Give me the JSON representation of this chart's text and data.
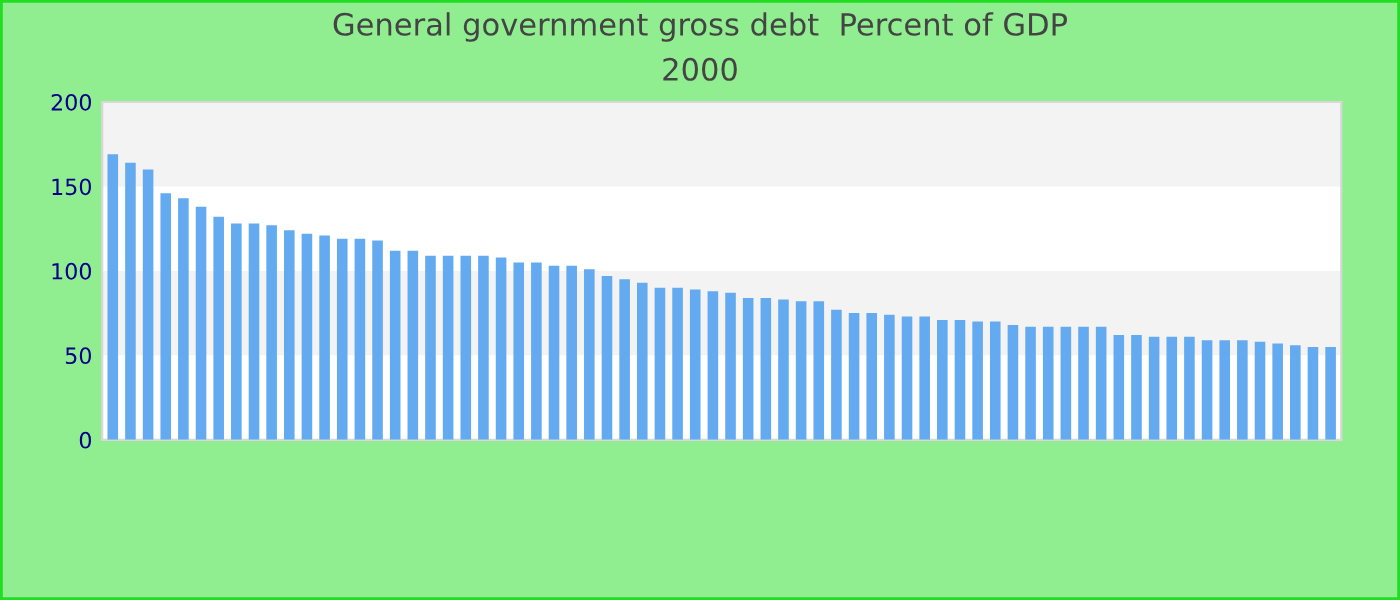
{
  "chart_data": {
    "type": "bar",
    "title": "General government gross debt  Percent of GDP",
    "subtitle": "2000",
    "categories": [
      null,
      null,
      null,
      null,
      null,
      null,
      null,
      null,
      null,
      null,
      null,
      null,
      null,
      null,
      null,
      null,
      null,
      null,
      null,
      null,
      null,
      null,
      null,
      null,
      null,
      null,
      null,
      null,
      null,
      null,
      null,
      null,
      null,
      null,
      null,
      null,
      null,
      null,
      null,
      null,
      null,
      null,
      null,
      null,
      null,
      null,
      null,
      null,
      null,
      null,
      null,
      null,
      null,
      null,
      null,
      null,
      null,
      null,
      null,
      null,
      null,
      null,
      null,
      null,
      null,
      null,
      null,
      null,
      null,
      null
    ],
    "values": [
      169,
      164,
      160,
      146,
      143,
      138,
      132,
      128,
      128,
      127,
      124,
      122,
      121,
      119,
      119,
      118,
      112,
      112,
      109,
      109,
      109,
      109,
      108,
      105,
      105,
      103,
      103,
      101,
      97,
      95,
      93,
      90,
      90,
      89,
      88,
      87,
      84,
      84,
      83,
      82,
      82,
      77,
      75,
      75,
      74,
      73,
      73,
      71,
      71,
      70,
      70,
      68,
      67,
      67,
      67,
      67,
      67,
      62,
      62,
      61,
      61,
      61,
      59,
      59,
      59,
      58,
      57,
      56,
      55,
      55
    ],
    "color": "#64aaf0",
    "ylim": [
      0,
      200
    ],
    "yticks": [
      0,
      50,
      100,
      150,
      200
    ]
  }
}
